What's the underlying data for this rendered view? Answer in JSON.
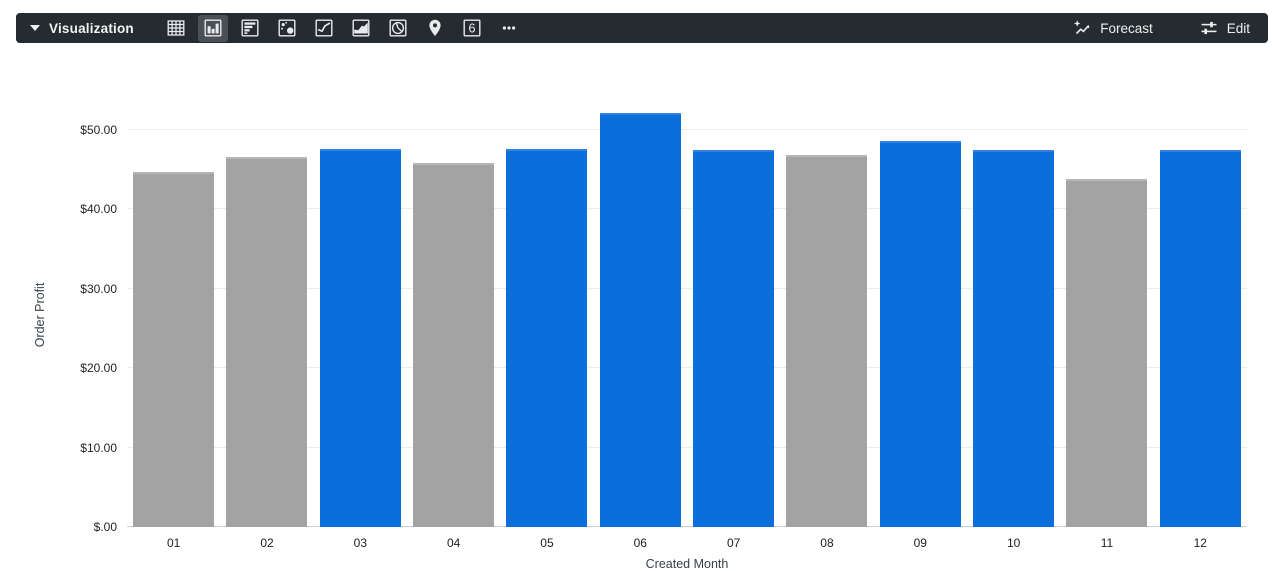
{
  "toolbar": {
    "title": "Visualization",
    "single_value_glyph": "6",
    "chart_types": [
      {
        "id": "table",
        "selected": false
      },
      {
        "id": "column",
        "selected": true
      },
      {
        "id": "bar",
        "selected": false
      },
      {
        "id": "scatter",
        "selected": false
      },
      {
        "id": "line",
        "selected": false
      },
      {
        "id": "area",
        "selected": false
      },
      {
        "id": "pie",
        "selected": false
      },
      {
        "id": "map",
        "selected": false
      },
      {
        "id": "single-value",
        "selected": false
      },
      {
        "id": "more",
        "selected": false
      }
    ],
    "forecast_label": "Forecast",
    "edit_label": "Edit"
  },
  "colors": {
    "bar_blue": "#0b6fdb",
    "bar_blue_top": "#2e82e2",
    "bar_gray": "#a3a3a3",
    "bar_gray_top": "#b6b6b6",
    "toolbar_bg": "#262b2f",
    "grid_line": "#ececec",
    "axis_line": "#ccd3d8"
  },
  "chart_data": {
    "type": "bar",
    "xlabel": "Created Month",
    "ylabel": "Order Profit",
    "categories": [
      "01",
      "02",
      "03",
      "04",
      "05",
      "06",
      "07",
      "08",
      "09",
      "10",
      "11",
      "12"
    ],
    "values": [
      44.5,
      46.3,
      47.4,
      45.6,
      47.4,
      51.9,
      47.2,
      46.6,
      48.4,
      47.2,
      43.6,
      47.2
    ],
    "bar_colors": [
      "gray",
      "gray",
      "blue",
      "gray",
      "blue",
      "blue",
      "blue",
      "gray",
      "blue",
      "blue",
      "gray",
      "blue"
    ],
    "y_ticks": [
      {
        "value": 0,
        "label": "$.00"
      },
      {
        "value": 10,
        "label": "$10.00"
      },
      {
        "value": 20,
        "label": "$20.00"
      },
      {
        "value": 30,
        "label": "$30.00"
      },
      {
        "value": 40,
        "label": "$40.00"
      },
      {
        "value": 50,
        "label": "$50.00"
      }
    ],
    "ylim": [
      0,
      53.4
    ],
    "grid": true,
    "legend": "none"
  }
}
